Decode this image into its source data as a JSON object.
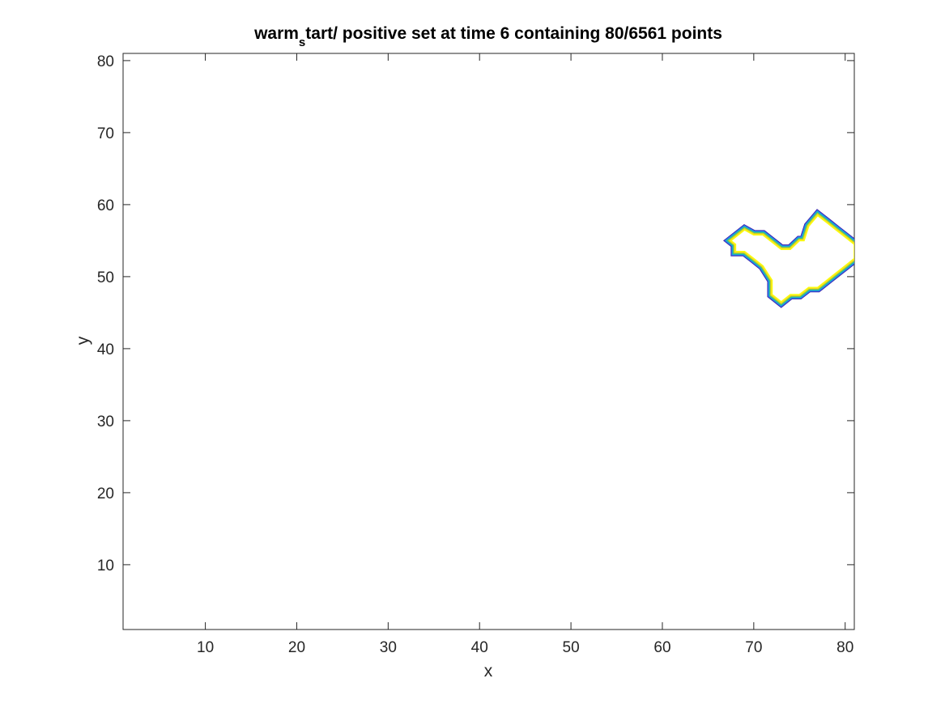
{
  "chart_data": {
    "type": "line",
    "title": {
      "main": "warm",
      "subscript": "s",
      "rest": "tart/ positive set at time 6 containing 80/6561 points"
    },
    "xlabel": "x",
    "ylabel": "y",
    "xlim": [
      1,
      81
    ],
    "ylim": [
      1,
      81
    ],
    "xticks": [
      10,
      20,
      30,
      40,
      50,
      60,
      70,
      80
    ],
    "yticks": [
      10,
      20,
      30,
      40,
      50,
      60,
      70,
      80
    ],
    "grid": false,
    "legend": "none",
    "contour_colors": [
      "#3e26a8",
      "#2e6ff2",
      "#17a9d8",
      "#2bc48c",
      "#a8c33c",
      "#f2d41f",
      "#f9fb0e"
    ],
    "series": [
      {
        "x": [
          67.5,
          69,
          70,
          71,
          72,
          73,
          74,
          75,
          75.5,
          76,
          77,
          78,
          79,
          80,
          81,
          81,
          80,
          79,
          78,
          77,
          76,
          75,
          74,
          73,
          72,
          72,
          71,
          70,
          69,
          68,
          68,
          67.5
        ],
        "y": [
          55,
          56.5,
          55.8,
          55.8,
          54.8,
          53.8,
          53.8,
          55,
          55,
          57,
          58.5,
          57.5,
          56.5,
          55.5,
          54.5,
          52.5,
          51.5,
          50.5,
          49.5,
          48.5,
          48.5,
          47.5,
          47.5,
          46.5,
          47.5,
          49.5,
          51.5,
          52.5,
          53.5,
          53.5,
          54.5,
          55
        ]
      }
    ]
  }
}
